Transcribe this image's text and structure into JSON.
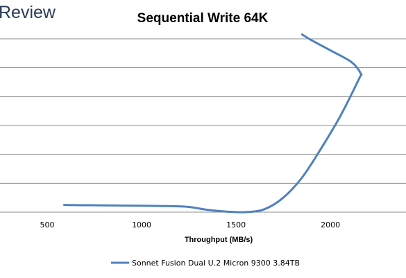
{
  "brand": {
    "text": "Review",
    "color": "#2b3b55"
  },
  "chart_data": {
    "type": "line",
    "title": "Sequential Write 64K",
    "xlabel": "Throughput (MB/s)",
    "ylabel": "",
    "xlim": [
      250,
      2400
    ],
    "x_ticks": [
      500,
      1000,
      1500,
      2000
    ],
    "y_gridlines": 7,
    "grid": "horizontal",
    "legend_position": "bottom",
    "series": [
      {
        "name": "Sonnet Fusion Dual U.2 Micron 9300 3.84TB",
        "color": "#4f81bd",
        "points": [
          [
            590,
            0.25
          ],
          [
            700,
            0.24
          ],
          [
            850,
            0.23
          ],
          [
            1000,
            0.22
          ],
          [
            1150,
            0.21
          ],
          [
            1250,
            0.18
          ],
          [
            1350,
            0.08
          ],
          [
            1450,
            0.02
          ],
          [
            1550,
            0.0
          ],
          [
            1650,
            0.1
          ],
          [
            1750,
            0.5
          ],
          [
            1850,
            1.2
          ],
          [
            1950,
            2.2
          ],
          [
            2050,
            3.3
          ],
          [
            2150,
            4.6
          ],
          [
            2160,
            4.8
          ],
          [
            2110,
            5.2
          ],
          [
            2000,
            5.6
          ],
          [
            1900,
            5.95
          ],
          [
            1850,
            6.15
          ]
        ]
      }
    ]
  }
}
